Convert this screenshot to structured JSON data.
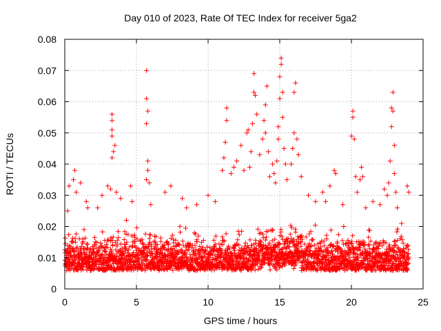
{
  "chart_data": {
    "type": "scatter",
    "title": "Day 010 of 2023, Rate Of TEC Index for receiver 5ga2",
    "xlabel": "GPS time / hours",
    "ylabel": "ROTI / TECUs",
    "xlim": [
      0,
      25
    ],
    "ylim": [
      0,
      0.08
    ],
    "xticks": [
      0,
      5,
      10,
      15,
      20,
      25
    ],
    "xtick_labels": [
      "0",
      "5",
      "10",
      "15",
      "20",
      "25"
    ],
    "yticks": [
      0,
      0.01,
      0.02,
      0.03,
      0.04,
      0.05,
      0.06,
      0.07,
      0.08
    ],
    "ytick_labels": [
      "0",
      "0.01",
      "0.02",
      "0.03",
      "0.04",
      "0.05",
      "0.06",
      "0.07",
      "0.08"
    ],
    "grid": true,
    "marker": "+",
    "color": "#ff0000",
    "series": [
      {
        "name": "ROTI",
        "x_range": [
          0,
          24
        ],
        "baseline_range": [
          0.003,
          0.022
        ],
        "points": [
          [
            0.2,
            0.025
          ],
          [
            0.3,
            0.033
          ],
          [
            0.6,
            0.035
          ],
          [
            0.7,
            0.038
          ],
          [
            0.8,
            0.031
          ],
          [
            1.1,
            0.034
          ],
          [
            1.5,
            0.028
          ],
          [
            1.6,
            0.026
          ],
          [
            2.3,
            0.026
          ],
          [
            2.6,
            0.03
          ],
          [
            3.0,
            0.033
          ],
          [
            3.2,
            0.032
          ],
          [
            3.3,
            0.056
          ],
          [
            3.3,
            0.054
          ],
          [
            3.3,
            0.051
          ],
          [
            3.3,
            0.049
          ],
          [
            3.4,
            0.044
          ],
          [
            3.5,
            0.046
          ],
          [
            3.3,
            0.042
          ],
          [
            3.6,
            0.031
          ],
          [
            3.9,
            0.029
          ],
          [
            4.3,
            0.022
          ],
          [
            4.6,
            0.033
          ],
          [
            4.7,
            0.028
          ],
          [
            5.7,
            0.07
          ],
          [
            5.7,
            0.061
          ],
          [
            5.8,
            0.057
          ],
          [
            5.7,
            0.053
          ],
          [
            5.8,
            0.041
          ],
          [
            5.8,
            0.038
          ],
          [
            5.7,
            0.035
          ],
          [
            5.9,
            0.034
          ],
          [
            6.0,
            0.027
          ],
          [
            7.0,
            0.031
          ],
          [
            7.4,
            0.033
          ],
          [
            8.2,
            0.029
          ],
          [
            8.5,
            0.026
          ],
          [
            9.2,
            0.027
          ],
          [
            10.0,
            0.03
          ],
          [
            10.5,
            0.028
          ],
          [
            11.0,
            0.038
          ],
          [
            11.1,
            0.042
          ],
          [
            11.2,
            0.047
          ],
          [
            11.3,
            0.058
          ],
          [
            11.3,
            0.054
          ],
          [
            11.6,
            0.037
          ],
          [
            11.8,
            0.039
          ],
          [
            12.0,
            0.041
          ],
          [
            12.3,
            0.046
          ],
          [
            12.5,
            0.038
          ],
          [
            12.7,
            0.05
          ],
          [
            12.8,
            0.051
          ],
          [
            12.9,
            0.039
          ],
          [
            13.0,
            0.044
          ],
          [
            13.1,
            0.053
          ],
          [
            13.2,
            0.063
          ],
          [
            13.2,
            0.069
          ],
          [
            13.3,
            0.062
          ],
          [
            13.4,
            0.056
          ],
          [
            13.6,
            0.043
          ],
          [
            13.8,
            0.048
          ],
          [
            13.9,
            0.054
          ],
          [
            14.0,
            0.05
          ],
          [
            14.0,
            0.059
          ],
          [
            14.1,
            0.065
          ],
          [
            14.2,
            0.044
          ],
          [
            14.3,
            0.036
          ],
          [
            14.5,
            0.04
          ],
          [
            14.6,
            0.037
          ],
          [
            14.7,
            0.034
          ],
          [
            14.8,
            0.041
          ],
          [
            14.9,
            0.048
          ],
          [
            14.9,
            0.052
          ],
          [
            15.0,
            0.061
          ],
          [
            15.0,
            0.068
          ],
          [
            15.1,
            0.072
          ],
          [
            15.1,
            0.074
          ],
          [
            15.2,
            0.063
          ],
          [
            15.2,
            0.055
          ],
          [
            15.3,
            0.045
          ],
          [
            15.4,
            0.04
          ],
          [
            15.5,
            0.035
          ],
          [
            15.8,
            0.04
          ],
          [
            15.9,
            0.045
          ],
          [
            16.0,
            0.05
          ],
          [
            16.0,
            0.063
          ],
          [
            16.1,
            0.066
          ],
          [
            16.2,
            0.048
          ],
          [
            16.3,
            0.043
          ],
          [
            16.5,
            0.036
          ],
          [
            17.0,
            0.03
          ],
          [
            17.5,
            0.028
          ],
          [
            18.0,
            0.031
          ],
          [
            18.2,
            0.028
          ],
          [
            18.5,
            0.033
          ],
          [
            18.8,
            0.038
          ],
          [
            18.9,
            0.037
          ],
          [
            19.4,
            0.027
          ],
          [
            20.0,
            0.049
          ],
          [
            20.1,
            0.057
          ],
          [
            20.1,
            0.055
          ],
          [
            20.2,
            0.048
          ],
          [
            20.3,
            0.036
          ],
          [
            20.4,
            0.031
          ],
          [
            20.6,
            0.035
          ],
          [
            20.7,
            0.039
          ],
          [
            20.8,
            0.036
          ],
          [
            21.0,
            0.026
          ],
          [
            21.5,
            0.028
          ],
          [
            22.0,
            0.027
          ],
          [
            22.3,
            0.032
          ],
          [
            22.5,
            0.03
          ],
          [
            22.6,
            0.034
          ],
          [
            22.7,
            0.041
          ],
          [
            22.8,
            0.052
          ],
          [
            22.8,
            0.058
          ],
          [
            22.9,
            0.063
          ],
          [
            22.9,
            0.057
          ],
          [
            23.0,
            0.046
          ],
          [
            23.0,
            0.037
          ],
          [
            23.1,
            0.031
          ],
          [
            23.2,
            0.026
          ],
          [
            23.5,
            0.021
          ],
          [
            23.9,
            0.033
          ],
          [
            24.0,
            0.031
          ]
        ]
      }
    ]
  }
}
